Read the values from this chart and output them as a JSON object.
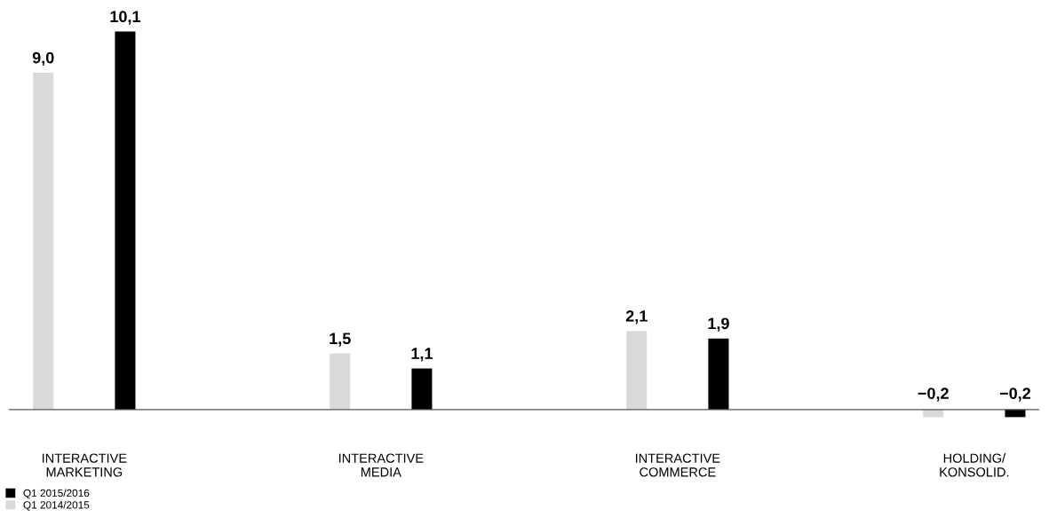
{
  "chart_data": {
    "type": "bar",
    "categories": [
      "INTERACTIVE\nMARKETING",
      "INTERACTIVE\nMEDIA",
      "INTERACTIVE\nCOMMERCE",
      "HOLDING/\nKONSOLID."
    ],
    "series": [
      {
        "name": "Q1 2014/2015",
        "color": "#d9d9d9",
        "values": [
          9.0,
          1.5,
          2.1,
          -0.2
        ],
        "value_labels": [
          "9,0",
          "1,5",
          "2,1",
          "−0,2"
        ]
      },
      {
        "name": "Q1 2015/2016",
        "color": "#000000",
        "values": [
          10.1,
          1.1,
          1.9,
          -0.2
        ],
        "value_labels": [
          "10,1",
          "1,1",
          "1,9",
          "−0,2"
        ]
      }
    ],
    "legend": "bottom left",
    "grid": false
  }
}
